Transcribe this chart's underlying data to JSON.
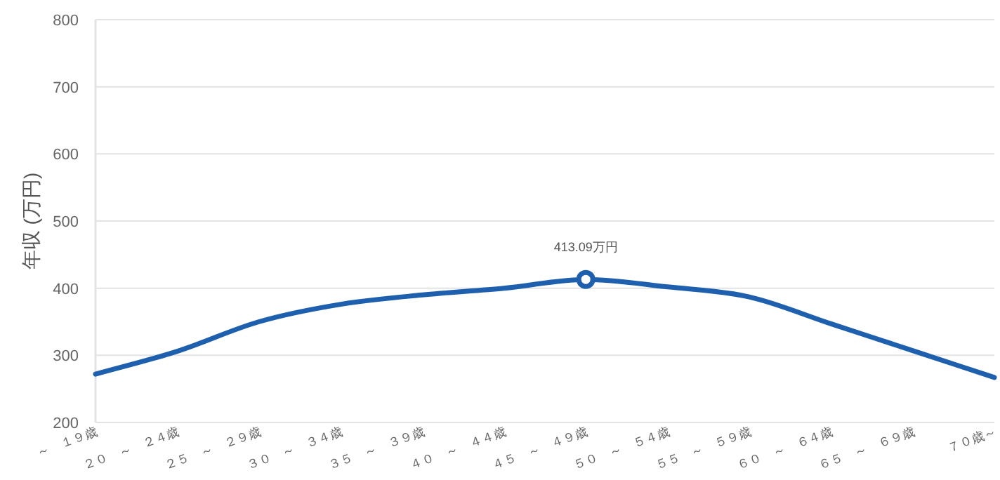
{
  "chart_data": {
    "type": "line",
    "ylabel": "年収 (万円)",
    "categories": [
      "～　１９歳",
      "２０　～　２４歳",
      "２５　～　２９歳",
      "３０　～　３４歳",
      "３５　～　３９歳",
      "４０　～　４４歳",
      "４５　～　４９歳",
      "５０　～　５４歳",
      "５５　～　５９歳",
      "６０　～　６４歳",
      "６５　～　６９歳",
      "７０歳～"
    ],
    "series": [
      {
        "color": "#1f60ae",
        "values": [
          272,
          306,
          350,
          376,
          390,
          400,
          413.09,
          402,
          387,
          347,
          307,
          267
        ]
      }
    ],
    "annotations": [
      {
        "text": "413.09万円",
        "x": "４５　～　４９歳",
        "y": 413.09
      }
    ],
    "ylim": [
      200,
      800
    ],
    "yticks": [
      200,
      300,
      400,
      500,
      600,
      700,
      800
    ],
    "grid": "y"
  }
}
